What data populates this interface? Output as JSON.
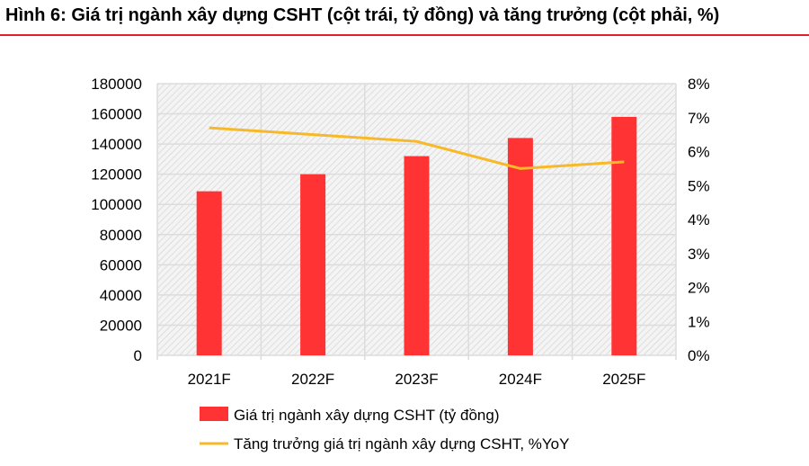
{
  "title": "Hình 6: Giá trị ngành xây dựng CSHT (cột trái, tỷ đồng) và tăng trưởng (cột phải, %)",
  "chart_data": {
    "type": "bar+line",
    "categories": [
      "2021F",
      "2022F",
      "2023F",
      "2024F",
      "2025F"
    ],
    "series": [
      {
        "name": "Giá trị ngành xây dựng CSHT (tỷ đồng)",
        "type": "bar",
        "axis": "left",
        "color": "#ff3333",
        "values": [
          108700,
          120000,
          132000,
          144000,
          158000
        ]
      },
      {
        "name": "Tăng trưởng giá trị ngành xây dựng CSHT, %YoY",
        "type": "line",
        "axis": "right",
        "color": "#f7b928",
        "values": [
          6.7,
          6.5,
          6.3,
          5.5,
          5.7
        ]
      }
    ],
    "ylim_left": [
      0,
      180000
    ],
    "yticks_left": [
      "0",
      "20000",
      "40000",
      "60000",
      "80000",
      "100000",
      "120000",
      "140000",
      "160000",
      "180000"
    ],
    "ylim_right": [
      0,
      8
    ],
    "yticks_right": [
      "0%",
      "1%",
      "2%",
      "3%",
      "4%",
      "5%",
      "6%",
      "7%",
      "8%"
    ],
    "grid": true,
    "legend": "bottom"
  }
}
